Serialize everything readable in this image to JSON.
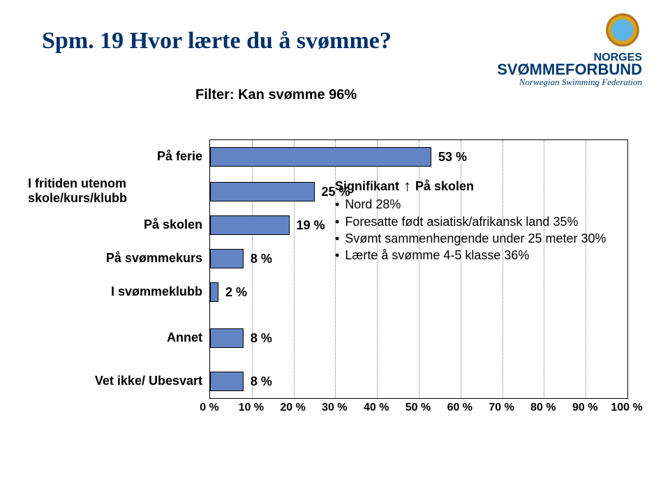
{
  "title": "Spm. 19 Hvor lærte du å svømme?",
  "filter": "Filter: Kan svømme 96%",
  "logo": {
    "line1": "NORGES",
    "line2": "SVØMMEFORBUND",
    "sub": "Norwegian Swimming Federation"
  },
  "chart": {
    "type": "bar",
    "bar_color": "#6384c4",
    "bar_border": "#000000",
    "grid_color": "#808080",
    "background": "#ffffff",
    "xmax": 100,
    "xtick_step": 10,
    "label_fontsize": 18,
    "value_fontsize": 18,
    "categories": [
      {
        "label": "På ferie",
        "value": 53,
        "display": "53 %"
      },
      {
        "label": "I fritiden utenom skole/kurs/klubb",
        "value": 25,
        "display": "25 %"
      },
      {
        "label": "På skolen",
        "value": 19,
        "display": "19 %"
      },
      {
        "label": "På svømmekurs",
        "value": 8,
        "display": "8 %"
      },
      {
        "label": "I svømmeklubb",
        "value": 2,
        "display": "2 %"
      },
      {
        "label": "Annet",
        "value": 8,
        "display": "8 %"
      },
      {
        "label": "Vet ikke/ Ubesvart",
        "value": 8,
        "display": "8 %"
      }
    ],
    "ticks": [
      "0 %",
      "10 %",
      "20 %",
      "30 %",
      "40 %",
      "50 %",
      "60 %",
      "70 %",
      "80 %",
      "90 %",
      "100 %"
    ]
  },
  "annotation": {
    "title_prefix": "Signifikant",
    "title_suffix": "På skolen",
    "bullets": [
      "Nord 28%",
      "Foresatte født asiatisk/afrikansk land 35%",
      "Svømt sammenhengende under 25 meter 30%",
      "Lærte å svømme 4-5 klasse 36%"
    ]
  }
}
